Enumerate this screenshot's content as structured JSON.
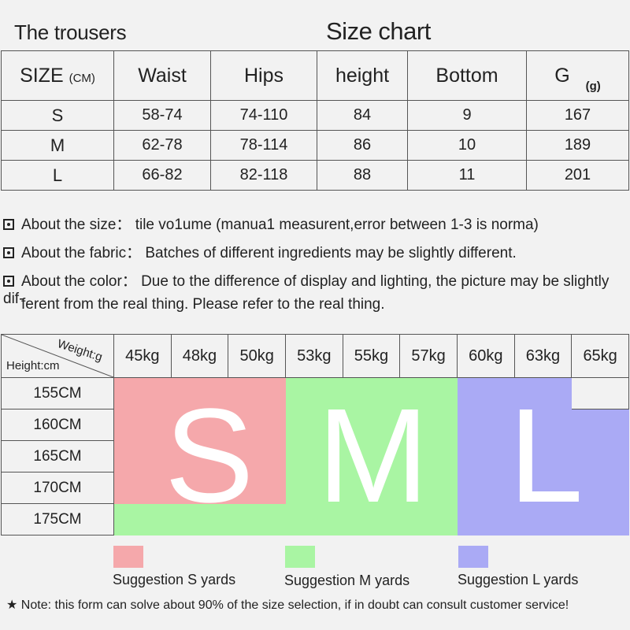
{
  "header": {
    "title_left": "The trousers",
    "title_center": "Size chart"
  },
  "size_table": {
    "head_size": "SIZE",
    "head_size_unit": "(CM)",
    "columns": [
      "Waist",
      "Hips",
      "height",
      "Bottom",
      "G"
    ],
    "g_unit": "(g)",
    "rows": [
      {
        "size": "S",
        "waist": "58-74",
        "hips": "74-110",
        "height": "84",
        "bottom": "9",
        "g": "167"
      },
      {
        "size": "M",
        "waist": "62-78",
        "hips": "78-114",
        "height": "86",
        "bottom": "10",
        "g": "189"
      },
      {
        "size": "L",
        "waist": "66-82",
        "hips": "82-118",
        "height": "88",
        "bottom": "11",
        "g": "201"
      }
    ]
  },
  "notes": {
    "size": "About the size： tile vo1ume (manua1 measurent,error between 1-3 is norma)",
    "fabric": "About the fabric： Batches of different ingredients may be slightly different.",
    "color_1": "About the color： Due to the difference of display and lighting, the picture may be slightly dif-",
    "color_2": "ferent from the real thing. Please refer to the real thing."
  },
  "grid": {
    "weight_label": "Weight:g",
    "height_label": "Height:cm",
    "weights": [
      "45kg",
      "48kg",
      "50kg",
      "53kg",
      "55kg",
      "57kg",
      "60kg",
      "63kg",
      "65kg"
    ],
    "heights": [
      "155CM",
      "160CM",
      "165CM",
      "170CM",
      "175CM"
    ],
    "cells": [
      [
        "S",
        "S",
        "S",
        "M",
        "M",
        "M",
        "L",
        "L",
        ""
      ],
      [
        "S",
        "S",
        "S",
        "M",
        "M",
        "M",
        "L",
        "L",
        "L"
      ],
      [
        "S",
        "S",
        "S",
        "M",
        "M",
        "M",
        "L",
        "L",
        "L"
      ],
      [
        "S",
        "S",
        "S",
        "M",
        "M",
        "M",
        "L",
        "L",
        "L"
      ],
      [
        "M",
        "M",
        "M",
        "M",
        "M",
        "M",
        "L",
        "L",
        "L"
      ]
    ],
    "letters": {
      "s": "S",
      "m": "M",
      "l": "L"
    },
    "colors": {
      "S": "#f5a8ab",
      "M": "#a9f5a3",
      "L": "#aaaaf5"
    }
  },
  "legend": {
    "s": "Suggestion S yards",
    "m": "Suggestion M yards",
    "l": "Suggestion L yards"
  },
  "footnote": "★ Note: this form can solve about 90% of the size selection, if in doubt can consult customer service!"
}
